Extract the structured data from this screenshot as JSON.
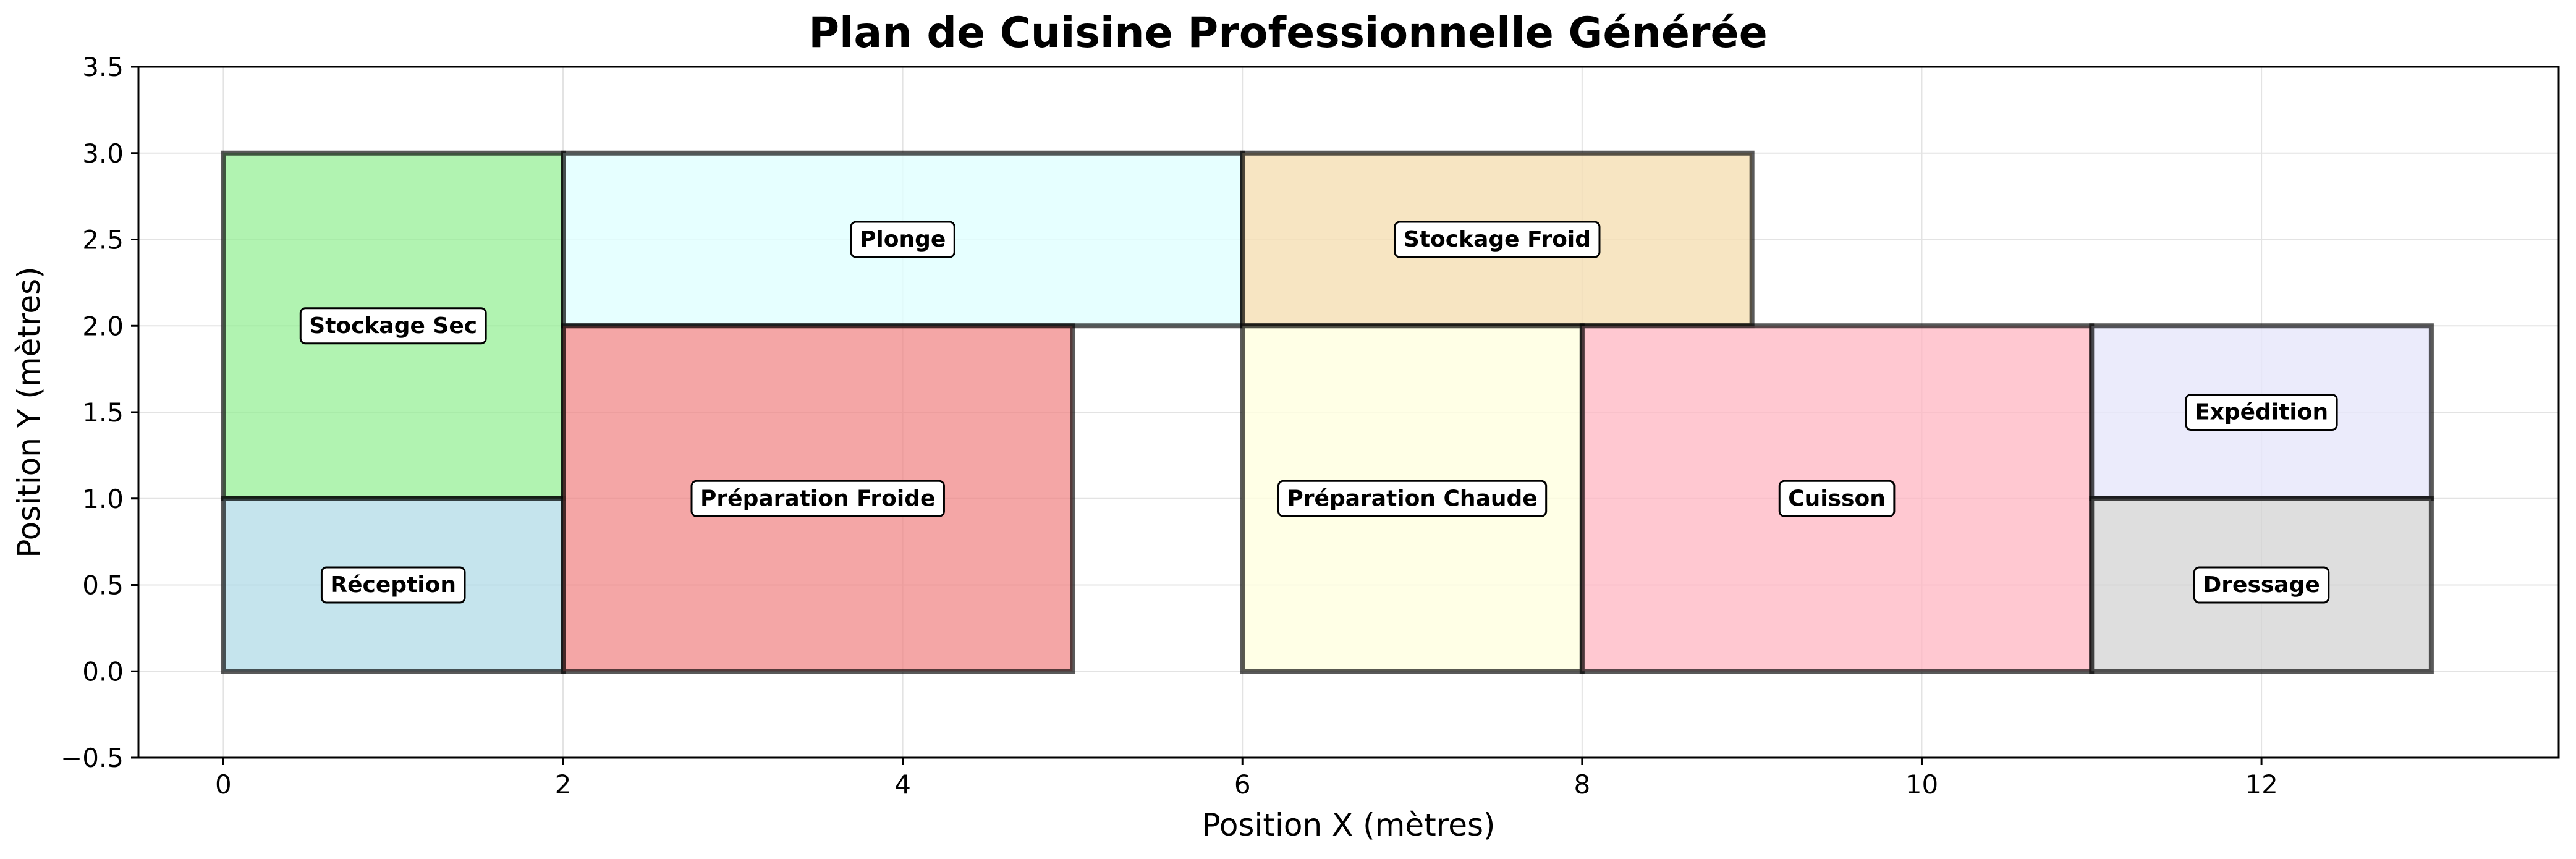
{
  "chart_data": {
    "type": "floor-plan",
    "title": "Plan de Cuisine Professionnelle Générée",
    "xlabel": "Position X (mètres)",
    "ylabel": "Position Y (mètres)",
    "xlim": [
      -0.5,
      13.75
    ],
    "ylim": [
      -0.5,
      3.5
    ],
    "xticks": [
      0,
      2,
      4,
      6,
      8,
      10,
      12
    ],
    "yticks": [
      -0.5,
      0.0,
      0.5,
      1.0,
      1.5,
      2.0,
      2.5,
      3.0,
      3.5
    ],
    "grid": true,
    "zones": [
      {
        "name": "Stockage Sec",
        "x": 0,
        "y": 1,
        "width": 2,
        "height": 2,
        "color": "#90EE90",
        "opacity": 0.7
      },
      {
        "name": "Réception",
        "x": 0,
        "y": 0,
        "width": 2,
        "height": 1,
        "color": "#ADD8E6",
        "opacity": 0.7
      },
      {
        "name": "Plonge",
        "x": 2,
        "y": 2,
        "width": 4,
        "height": 1,
        "color": "#E0FFFF",
        "opacity": 0.8
      },
      {
        "name": "Préparation Froide",
        "x": 2,
        "y": 0,
        "width": 3,
        "height": 2,
        "color": "#F08080",
        "opacity": 0.7
      },
      {
        "name": "Stockage Froid",
        "x": 6,
        "y": 2,
        "width": 3,
        "height": 1,
        "color": "#F5DEB3",
        "opacity": 0.8
      },
      {
        "name": "Préparation Chaude",
        "x": 6,
        "y": 0,
        "width": 2,
        "height": 2,
        "color": "#FFFFE0",
        "opacity": 0.8
      },
      {
        "name": "Cuisson",
        "x": 8,
        "y": 0,
        "width": 3,
        "height": 2,
        "color": "#FFB6C1",
        "opacity": 0.75
      },
      {
        "name": "Expédition",
        "x": 11,
        "y": 1,
        "width": 2,
        "height": 1,
        "color": "#E6E6FA",
        "opacity": 0.8
      },
      {
        "name": "Dressage",
        "x": 11,
        "y": 0,
        "width": 2,
        "height": 1,
        "color": "#D3D3D3",
        "opacity": 0.75
      }
    ]
  }
}
